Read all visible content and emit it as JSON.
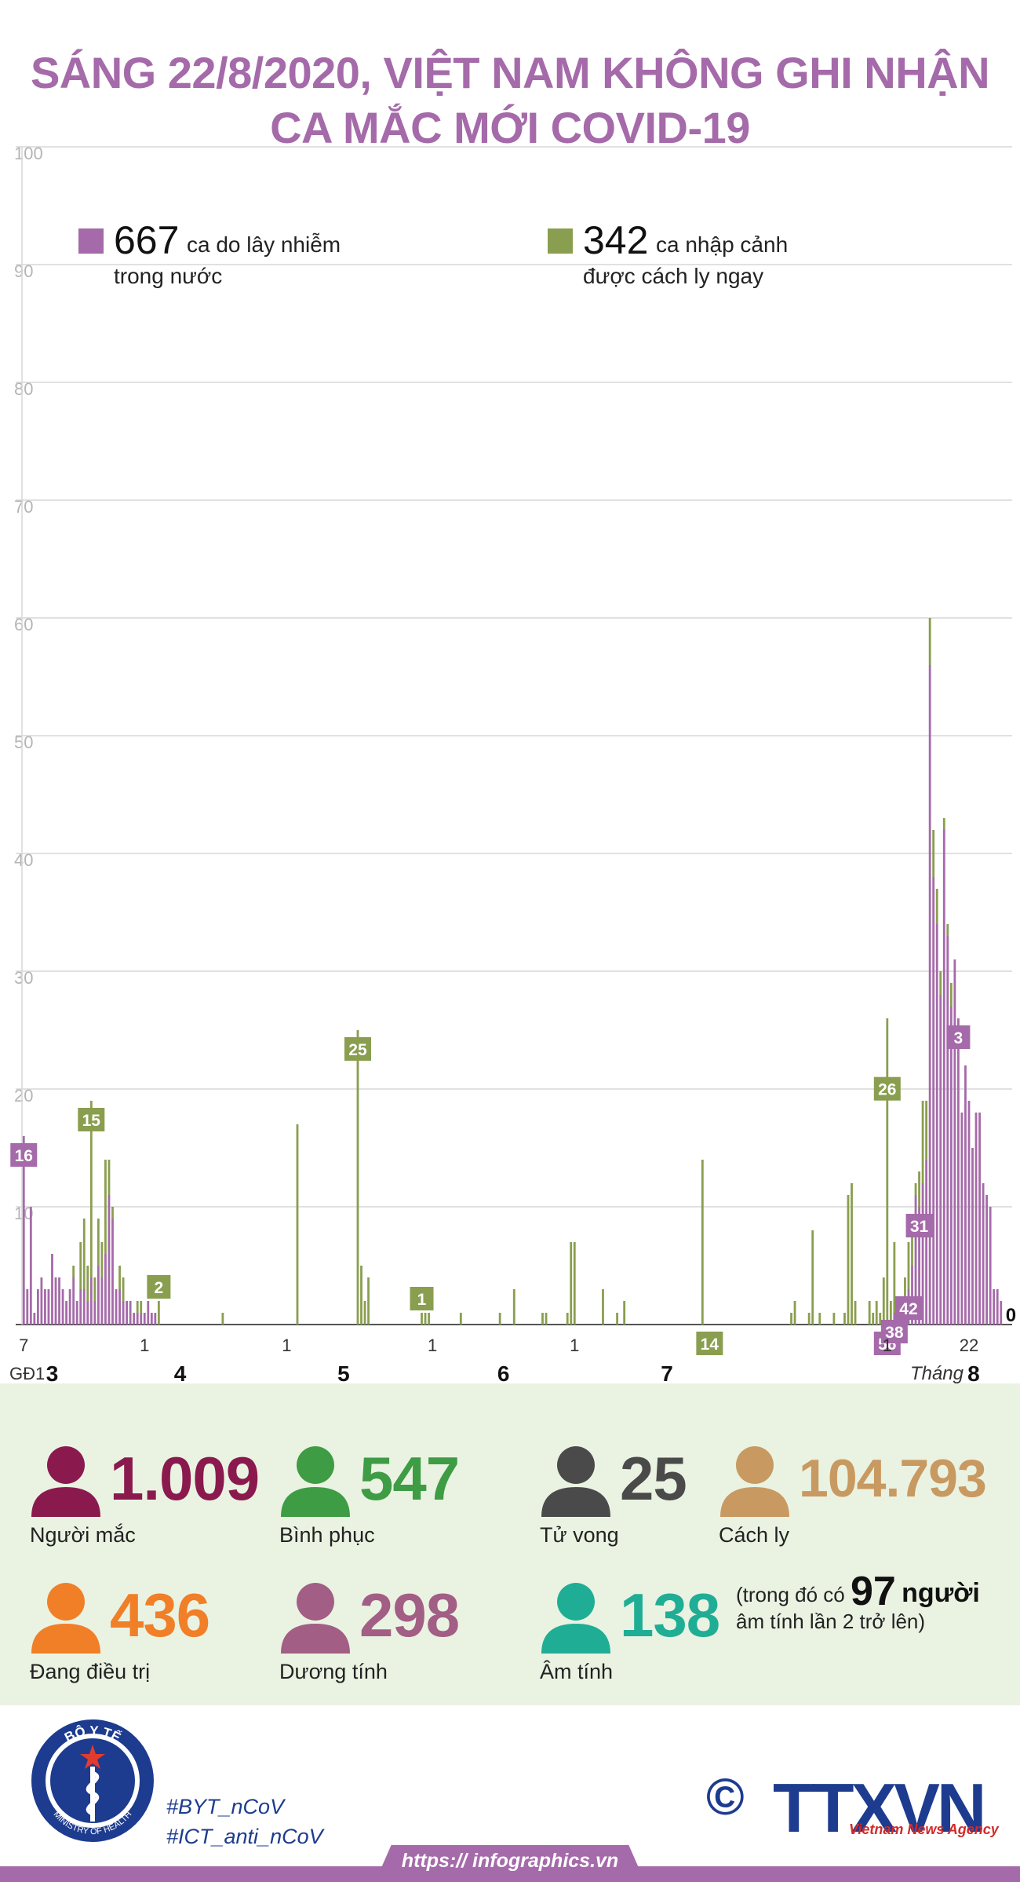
{
  "title_line1": "SÁNG 22/8/2020, VIỆT NAM KHÔNG GHI NHẬN",
  "title_line2": "CA MẮC MỚI COVID-19",
  "chart_data": {
    "type": "bar",
    "stacked": true,
    "ylim": [
      0,
      100
    ],
    "yticks": [
      0,
      10,
      20,
      30,
      40,
      50,
      60,
      70,
      80,
      90,
      100
    ],
    "grid": true,
    "legend": [
      {
        "value": "667",
        "text1": "ca do lây nhiễm",
        "text2": "trong nước",
        "color": "#a56aa9"
      },
      {
        "value": "342",
        "text1": "ca nhập cảnh",
        "text2": "được cách ly ngay",
        "color": "#8a9e4f"
      }
    ],
    "series": [
      {
        "name": "domestic",
        "color": "#a56aa9",
        "values": [
          16,
          3,
          10,
          1,
          3,
          4,
          3,
          3,
          6,
          4,
          4,
          3,
          2,
          3,
          4,
          2,
          3,
          3,
          2,
          4,
          2,
          5,
          4,
          6,
          11,
          9,
          3,
          3,
          2,
          2,
          2,
          1,
          1,
          1,
          1,
          2,
          1,
          1,
          0,
          0,
          0,
          0,
          0,
          0,
          0,
          0,
          0,
          0,
          0,
          0,
          0,
          0,
          0,
          0,
          0,
          0,
          0,
          0,
          0,
          0,
          0,
          0,
          0,
          0,
          0,
          0,
          0,
          0,
          0,
          0,
          0,
          0,
          0,
          0,
          0,
          0,
          0,
          0,
          0,
          0,
          0,
          0,
          0,
          0,
          0,
          0,
          0,
          0,
          0,
          0,
          0,
          0,
          0,
          0,
          0,
          0,
          0,
          0,
          0,
          0,
          0,
          0,
          0,
          0,
          0,
          0,
          0,
          0,
          0,
          0,
          0,
          0,
          0,
          0,
          0,
          0,
          0,
          0,
          0,
          0,
          0,
          0,
          0,
          0,
          0,
          0,
          0,
          0,
          0,
          0,
          0,
          0,
          0,
          0,
          0,
          0,
          0,
          0,
          0,
          0,
          0,
          0,
          0,
          0,
          0,
          0,
          0,
          0,
          0,
          0,
          0,
          0,
          0,
          0,
          0,
          0,
          0,
          0,
          0,
          0,
          0,
          0,
          0,
          0,
          0,
          0,
          0,
          0,
          0,
          0,
          0,
          0,
          0,
          0,
          0,
          0,
          0,
          0,
          0,
          0,
          0,
          0,
          0,
          0,
          0,
          0,
          0,
          0,
          0,
          0,
          0,
          0,
          0,
          0,
          0,
          0,
          0,
          0,
          0,
          0,
          0,
          0,
          0,
          0,
          0,
          0,
          0,
          0,
          0,
          0,
          0,
          0,
          0,
          0,
          0,
          0,
          0,
          0,
          0,
          0,
          0,
          0,
          0,
          0,
          0,
          0,
          0,
          0,
          0,
          0,
          0,
          0,
          0,
          0,
          0,
          0,
          0,
          0,
          0,
          0,
          0,
          0,
          0,
          0,
          0,
          1,
          0,
          0,
          1,
          3,
          5,
          11,
          10,
          12,
          14,
          56,
          38,
          34,
          28,
          42,
          33,
          27,
          31,
          26,
          18,
          22,
          19,
          15,
          18,
          18,
          12,
          11,
          10,
          3,
          3,
          2
        ]
      },
      {
        "name": "imported",
        "color": "#8a9e4f",
        "values": [
          0,
          0,
          0,
          0,
          0,
          0,
          0,
          0,
          0,
          0,
          0,
          0,
          0,
          0,
          1,
          0,
          4,
          6,
          3,
          15,
          2,
          4,
          3,
          8,
          3,
          1,
          0,
          2,
          2,
          0,
          0,
          0,
          1,
          1,
          0,
          0,
          0,
          0,
          2,
          0,
          0,
          0,
          0,
          0,
          0,
          0,
          0,
          0,
          0,
          0,
          0,
          0,
          0,
          0,
          0,
          0,
          1,
          0,
          0,
          0,
          0,
          0,
          0,
          0,
          0,
          0,
          0,
          0,
          0,
          0,
          0,
          0,
          0,
          0,
          0,
          0,
          0,
          17,
          0,
          0,
          0,
          0,
          0,
          0,
          0,
          0,
          0,
          0,
          0,
          0,
          0,
          0,
          0,
          0,
          25,
          5,
          2,
          4,
          0,
          0,
          0,
          0,
          0,
          0,
          0,
          0,
          0,
          0,
          0,
          0,
          0,
          0,
          1,
          1,
          1,
          0,
          0,
          0,
          0,
          0,
          0,
          0,
          0,
          1,
          0,
          0,
          0,
          0,
          0,
          0,
          0,
          0,
          0,
          0,
          1,
          0,
          0,
          0,
          3,
          0,
          0,
          0,
          0,
          0,
          0,
          0,
          1,
          1,
          0,
          0,
          0,
          0,
          0,
          1,
          7,
          7,
          0,
          0,
          0,
          0,
          0,
          0,
          0,
          3,
          0,
          0,
          0,
          1,
          0,
          2,
          0,
          0,
          0,
          0,
          0,
          0,
          0,
          0,
          0,
          0,
          0,
          0,
          0,
          0,
          0,
          0,
          0,
          0,
          0,
          0,
          0,
          14,
          0,
          0,
          0,
          0,
          0,
          0,
          0,
          0,
          0,
          0,
          0,
          0,
          0,
          0,
          0,
          0,
          0,
          0,
          0,
          0,
          0,
          0,
          0,
          0,
          1,
          2,
          0,
          0,
          0,
          1,
          8,
          0,
          1,
          0,
          0,
          0,
          1,
          0,
          0,
          1,
          11,
          12,
          2,
          0,
          0,
          0,
          2,
          1,
          2,
          1,
          4,
          26,
          2,
          6,
          1,
          1,
          3,
          4,
          3,
          1,
          3,
          7,
          5,
          4,
          4,
          3,
          2,
          1,
          1,
          2,
          0
        ]
      }
    ],
    "annotations": [
      {
        "index": 0,
        "value": 16,
        "series": "domestic"
      },
      {
        "index": 19,
        "value": 15,
        "series": "imported"
      },
      {
        "index": 38,
        "value": 2,
        "series": "imported"
      },
      {
        "index": 94,
        "value": 25,
        "series": "imported"
      },
      {
        "index": 112,
        "value": 1,
        "series": "imported"
      },
      {
        "index": 193,
        "value": 14,
        "series": "imported"
      },
      {
        "index": 243,
        "value": 56,
        "series": "domestic"
      },
      {
        "index": 243,
        "value": 26,
        "series": "imported"
      },
      {
        "index": 245,
        "value": 38,
        "series": "domestic"
      },
      {
        "index": 249,
        "value": 42,
        "series": "domestic"
      },
      {
        "index": 252,
        "value": 31,
        "series": "domestic"
      },
      {
        "index": 263,
        "value": 3,
        "series": "domestic"
      }
    ],
    "x_tick_labels": [
      {
        "index": 0,
        "label": "7"
      },
      {
        "index": 34,
        "label": "1"
      },
      {
        "index": 74,
        "label": "1"
      },
      {
        "index": 115,
        "label": "1"
      },
      {
        "index": 155,
        "label": "1"
      },
      {
        "index": 243,
        "label": "1"
      },
      {
        "index": 266,
        "label": "22"
      }
    ],
    "final_value_label": "0",
    "month_row": {
      "phase_label": "GĐ1",
      "months": [
        {
          "index": 8,
          "label": "3"
        },
        {
          "index": 44,
          "label": "4"
        },
        {
          "index": 90,
          "label": "5"
        },
        {
          "index": 135,
          "label": "6"
        },
        {
          "index": 181,
          "label": "7"
        },
        {
          "index": 266,
          "label": "8"
        }
      ],
      "thang_label": "Tháng"
    }
  },
  "stats": {
    "infected": {
      "value": "1.009",
      "label": "Người mắc",
      "color": "#8a1a4e"
    },
    "recovered": {
      "value": "547",
      "label": "Bình phục",
      "color": "#3e9c44"
    },
    "deaths": {
      "value": "25",
      "label": "Tử vong",
      "color": "#4a4a4a"
    },
    "quarantine": {
      "value": "104.793",
      "label": "Cách ly",
      "color": "#c89961"
    },
    "treating": {
      "value": "436",
      "label": "Đang điều trị",
      "color": "#f07f28"
    },
    "positive": {
      "value": "298",
      "label": "Dương tính",
      "color": "#a25e85"
    },
    "negative": {
      "value": "138",
      "label": "Âm tính",
      "color": "#1fae95"
    }
  },
  "note": {
    "prefix": "(trong đó có",
    "number": "97",
    "suffix": "người",
    "line2": "âm tính lần 2 trở lên)"
  },
  "footer": {
    "hashtag1": "#BYT_nCoV",
    "hashtag2": "#ICT_anti_nCoV",
    "url": "https:// infographics.vn",
    "logo_top_text": "BỘ Y TẾ",
    "logo_bottom_text": "MINISTRY OF HEALTH",
    "brand": "TTXVN",
    "brand_sub": "Vietnam News Agency",
    "copyright": "©"
  }
}
